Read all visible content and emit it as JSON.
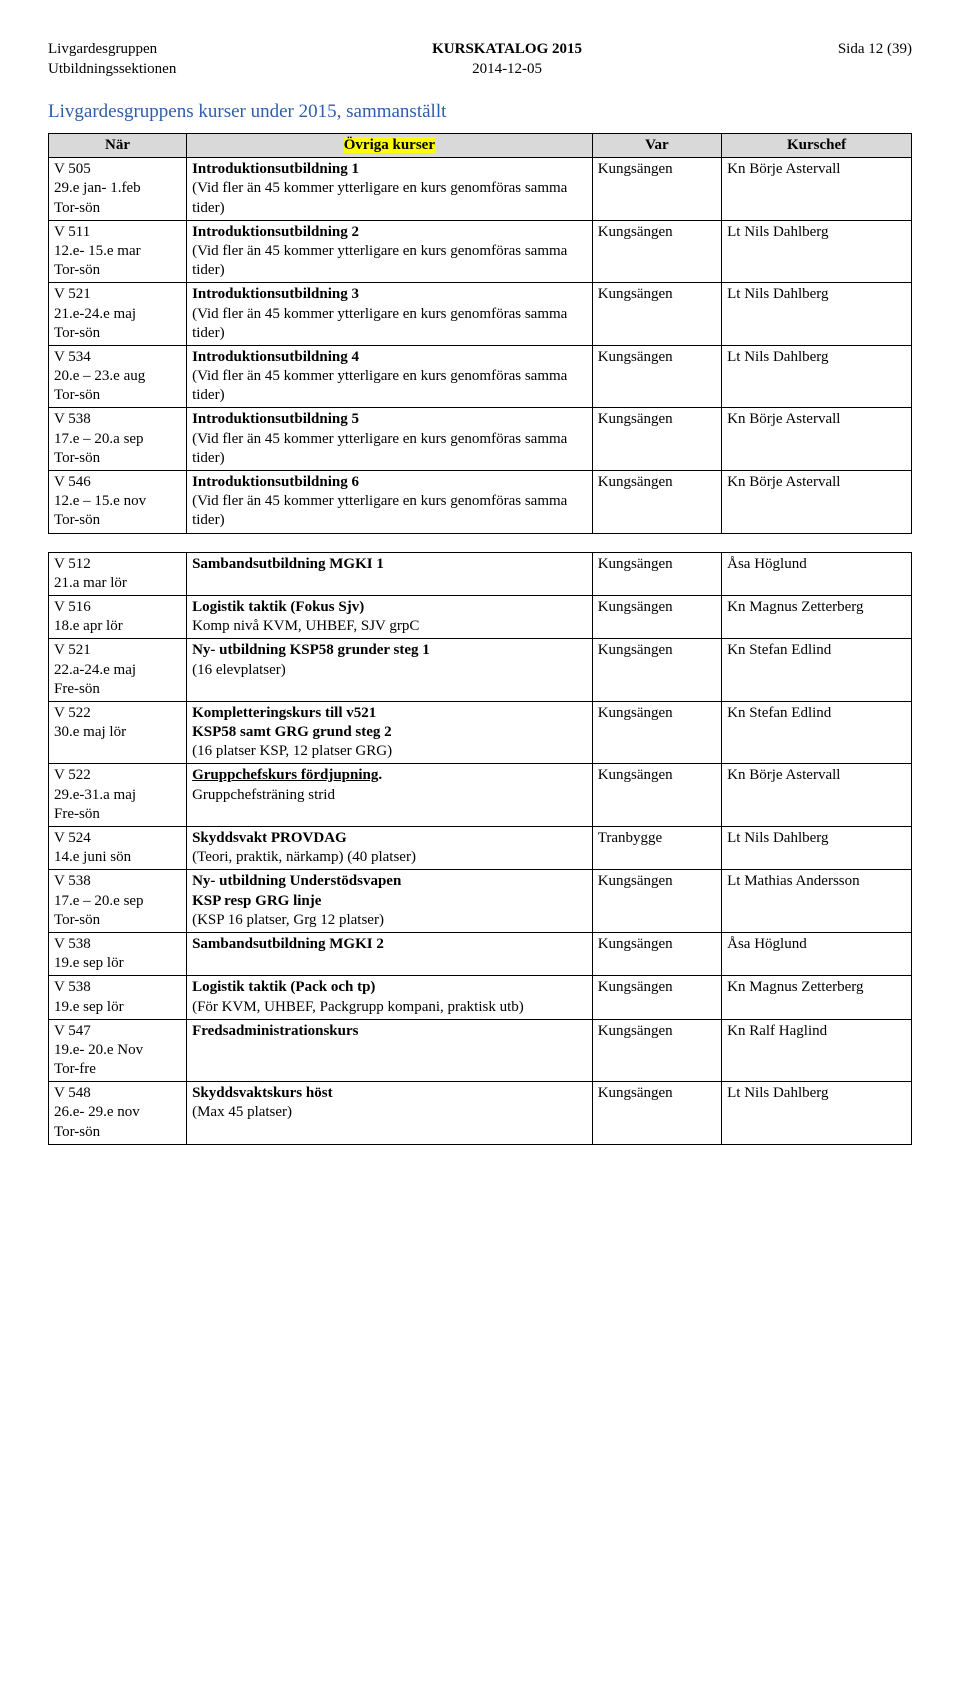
{
  "header": {
    "org1": "Livgardesgruppen",
    "org2": "Utbildningssektionen",
    "title": "KURSKATALOG 2015",
    "date": "2014-12-05",
    "pageLabel": "Sida 12 (39)"
  },
  "sectionTitle": "Livgardesgruppens kurser under 2015, sammanställt",
  "table1": {
    "headers": {
      "c1": "När",
      "c2": "Övriga kurser",
      "c3": "Var",
      "c4": "Kurschef"
    },
    "highlightHeader": "c2",
    "rows": [
      {
        "when_l1": "V 505",
        "when_l2": "29.e jan- 1.feb",
        "when_l3": "Tor-sön",
        "desc_bold": "Introduktionsutbildning 1",
        "desc_rest": "(Vid fler än 45 kommer ytterligare en kurs genomföras samma tider)",
        "where": "Kungsängen",
        "who": "Kn Börje Astervall"
      },
      {
        "when_l1": "V 511",
        "when_l2": "12.e- 15.e mar",
        "when_l3": "Tor-sön",
        "desc_bold": "Introduktionsutbildning 2",
        "desc_rest": "(Vid fler än 45 kommer ytterligare en kurs genomföras samma tider)",
        "where": "Kungsängen",
        "who": "Lt Nils Dahlberg"
      },
      {
        "when_l1": "V 521",
        "when_l2": "21.e-24.e maj",
        "when_l3": "Tor-sön",
        "desc_bold": "Introduktionsutbildning 3",
        "desc_rest": "(Vid fler än 45 kommer ytterligare en kurs genomföras samma tider)",
        "where": "Kungsängen",
        "who": "Lt Nils Dahlberg"
      },
      {
        "when_l1": "V 534",
        "when_l2": "20.e – 23.e aug",
        "when_l3": "Tor-sön",
        "desc_bold": "Introduktionsutbildning 4",
        "desc_rest": "(Vid fler än 45 kommer ytterligare en kurs genomföras samma tider)",
        "where": "Kungsängen",
        "who": "Lt Nils Dahlberg"
      },
      {
        "when_l1": "V 538",
        "when_l2": "17.e – 20.a sep",
        "when_l3": "Tor-sön",
        "desc_bold": "Introduktionsutbildning 5",
        "desc_rest": "(Vid fler än 45 kommer ytterligare en kurs genomföras samma tider)",
        "where": "Kungsängen",
        "who": "Kn Börje Astervall"
      },
      {
        "when_l1": "V 546",
        "when_l2": "12.e – 15.e nov",
        "when_l3": "Tor-sön",
        "desc_bold": "Introduktionsutbildning 6",
        "desc_rest": "(Vid fler än 45 kommer ytterligare en kurs genomföras samma tider)",
        "where": "Kungsängen",
        "who": "Kn Börje Astervall"
      }
    ]
  },
  "table2": {
    "rows": [
      {
        "when_l1": "V 512",
        "when_l2": "21.a mar   lör",
        "when_l3": "",
        "desc_bold": "Sambandsutbildning MGKI 1",
        "desc_rest": "",
        "where": "Kungsängen",
        "who": "Åsa Höglund"
      },
      {
        "when_l1": "V 516",
        "when_l2": "18.e apr   lör",
        "when_l3": "",
        "desc_bold": "Logistik taktik (Fokus Sjv)",
        "desc_rest": "Komp nivå KVM, UHBEF, SJV grpC",
        "where": "Kungsängen",
        "who": "Kn Magnus Zetterberg"
      },
      {
        "when_l1": "V 521",
        "when_l2": "22.a-24.e maj",
        "when_l3": "Fre-sön",
        "desc_bold": "Ny- utbildning KSP58 grunder steg 1",
        "desc_rest": "(16 elevplatser)",
        "where": "Kungsängen",
        "who": "Kn Stefan Edlind"
      },
      {
        "when_l1": "V 522",
        "when_l2": "30.e maj    lör",
        "when_l3": "",
        "desc_bold": "Kompletteringskurs till v521",
        "desc_bold2": "KSP58 samt GRG  grund steg 2",
        "desc_rest": "(16 platser KSP, 12 platser GRG)",
        "where": "Kungsängen",
        "who": "Kn Stefan Edlind"
      },
      {
        "when_l1": "V 522",
        "when_l2": "29.e-31.a maj",
        "when_l3": "Fre-sön",
        "desc_bold_u": "Gruppchefskurs fördjupning",
        "desc_rest": "Gruppchefsträning strid",
        "where": "Kungsängen",
        "who": "Kn Börje Astervall"
      },
      {
        "when_l1": "V 524",
        "when_l2": "14.e juni   sön",
        "when_l3": "",
        "desc_bold": "Skyddsvakt PROVDAG",
        "desc_rest": "(Teori, praktik, närkamp) (40 platser)",
        "where": "Tranbygge",
        "who": "Lt Nils Dahlberg"
      },
      {
        "when_l1": "V 538",
        "when_l2": "17.e – 20.e sep",
        "when_l3": "Tor-sön",
        "desc_bold": "Ny- utbildning Understödsvapen",
        "desc_bold2": "KSP resp GRG linje",
        "desc_rest": "(KSP 16 platser, Grg  12 platser)",
        "where": "Kungsängen",
        "who": "Lt Mathias Andersson"
      },
      {
        "when_l1": "V 538",
        "when_l2": "19.e  sep   lör",
        "when_l3": "",
        "desc_bold": "Sambandsutbildning MGKI 2",
        "desc_rest": "",
        "where": "Kungsängen",
        "who": "Åsa Höglund"
      },
      {
        "when_l1": "V 538",
        "when_l2": "19.e sep    lör",
        "when_l3": "",
        "desc_bold": "Logistik taktik (Pack och tp)",
        "desc_rest": "(För KVM, UHBEF, Packgrupp kompani, praktisk utb)",
        "where": "Kungsängen",
        "who": "Kn Magnus Zetterberg"
      },
      {
        "when_l1": "V 547",
        "when_l2": "19.e- 20.e Nov",
        "when_l3": "Tor-fre",
        "desc_bold": "Fredsadministrationskurs",
        "desc_rest": "",
        "where": "Kungsängen",
        "who": "Kn Ralf Haglind"
      },
      {
        "when_l1": "V 548",
        "when_l2": "26.e- 29.e nov",
        "when_l3": "Tor-sön",
        "desc_bold": "Skyddsvaktskurs höst",
        "desc_rest": "(Max 45 platser)",
        "where": "Kungsängen",
        "who": "Lt Nils Dahlberg"
      }
    ]
  }
}
